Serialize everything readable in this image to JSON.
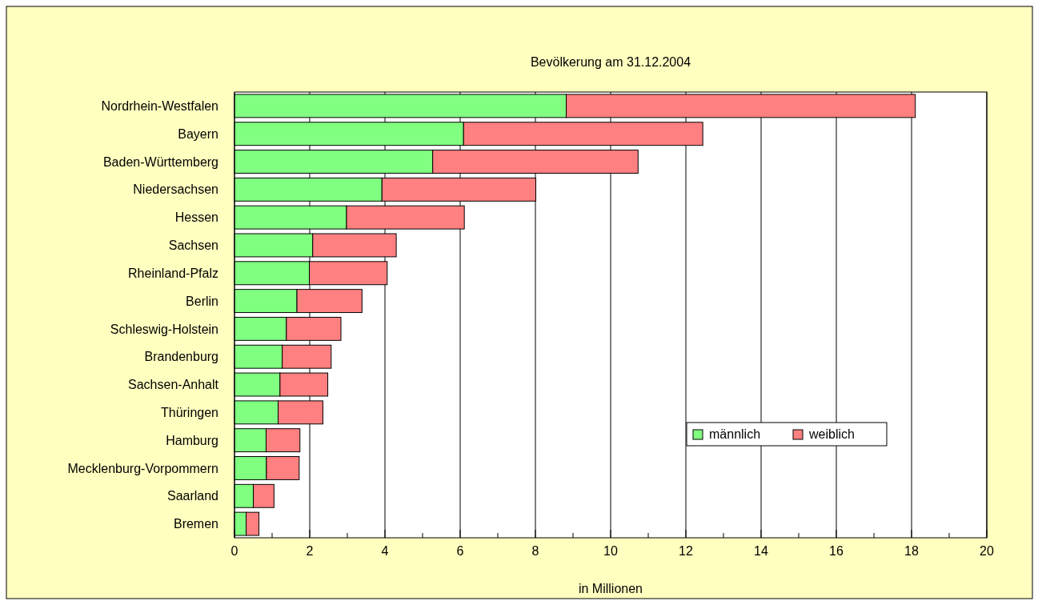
{
  "chart_data": {
    "type": "bar",
    "orientation": "horizontal",
    "stacked": true,
    "title": "Bevölkerung am 31.12.2004",
    "xlabel": "in Millionen",
    "categories": [
      "Nordrhein-Westfalen",
      "Bayern",
      "Baden-Württemberg",
      "Niedersachsen",
      "Hessen",
      "Sachsen",
      "Rheinland-Pfalz",
      "Berlin",
      "Schleswig-Holstein",
      "Brandenburg",
      "Sachsen-Anhalt",
      "Thüringen",
      "Hamburg",
      "Mecklenburg-Vorpommern",
      "Saarland",
      "Bremen"
    ],
    "series": [
      {
        "name": "männlich",
        "color": "#80ff80",
        "values": [
          8.82,
          6.09,
          5.27,
          3.92,
          2.98,
          2.08,
          1.99,
          1.66,
          1.38,
          1.27,
          1.21,
          1.16,
          0.84,
          0.85,
          0.5,
          0.31
        ]
      },
      {
        "name": "weiblich",
        "color": "#ff8080",
        "values": [
          9.28,
          6.36,
          5.46,
          4.09,
          3.13,
          2.22,
          2.07,
          1.73,
          1.45,
          1.3,
          1.27,
          1.19,
          0.9,
          0.87,
          0.55,
          0.34
        ]
      }
    ],
    "xlim": [
      0,
      20
    ],
    "xticks": [
      0,
      {
        "value": 1,
        "label": null
      },
      2,
      {
        "value": 3,
        "label": null
      },
      4,
      {
        "value": 5,
        "label": null
      },
      6,
      {
        "value": 7,
        "label": null
      },
      8,
      {
        "value": 9,
        "label": null
      },
      10,
      {
        "value": 11,
        "label": null
      },
      12,
      {
        "value": 13,
        "label": null
      },
      14,
      {
        "value": 15,
        "label": null
      },
      16,
      {
        "value": 17,
        "label": null
      },
      18,
      {
        "value": 19,
        "label": null
      },
      20
    ],
    "grid": "x",
    "legend": "right"
  }
}
